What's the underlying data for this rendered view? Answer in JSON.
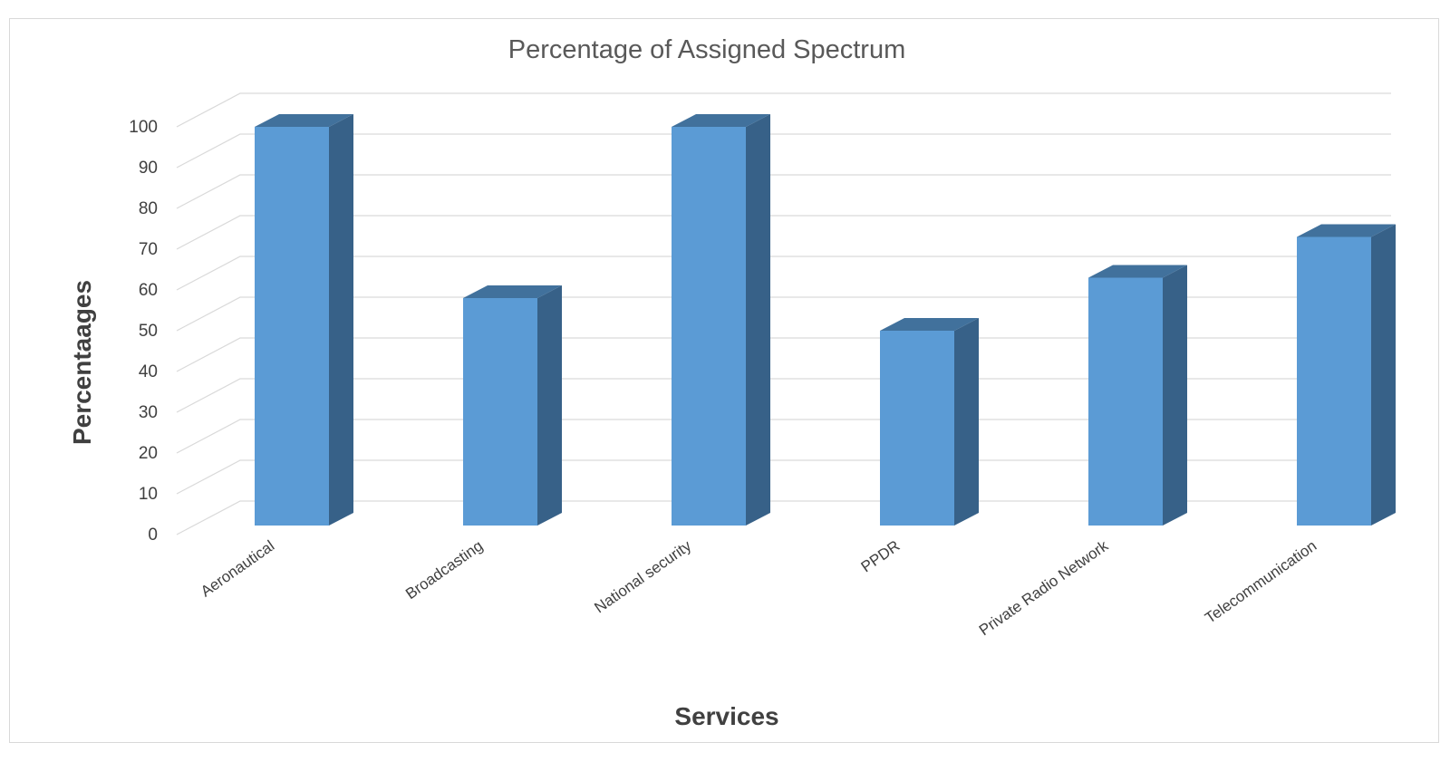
{
  "chart_data": {
    "type": "bar",
    "style": "3d-column",
    "title": "Percentage of Assigned Spectrum",
    "xlabel": "Services",
    "ylabel": "Percentaages",
    "categories": [
      "Aeronautical",
      "Broadcasting",
      "National security",
      "PPDR",
      "Private Radio Network",
      "Telecommunication"
    ],
    "values": [
      100,
      58,
      100,
      50,
      63,
      73
    ],
    "ylim": [
      0,
      100
    ],
    "yticks": [
      "0",
      "10",
      "20",
      "30",
      "40",
      "50",
      "60",
      "70",
      "80",
      "90",
      "100"
    ],
    "grid": true,
    "legend": "none",
    "colors": {
      "bar_front": "#5B9BD5",
      "bar_side": "#376188",
      "bar_top": "#41719C",
      "grid": "#d9d9d9"
    }
  }
}
